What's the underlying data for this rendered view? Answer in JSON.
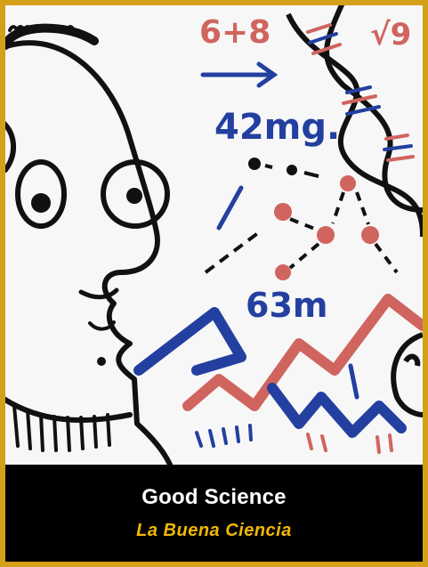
{
  "card": {
    "title": "Good Science",
    "subtitle": "La Buena Ciencia",
    "colors": {
      "frame": "#d4a017",
      "caption_bg": "#000000",
      "title_text": "#ffffff",
      "subtitle_text": "#f2b705",
      "ink_black": "#111111",
      "ink_blue": "#2340a0",
      "ink_red": "#d0645f"
    }
  },
  "whiteboard": {
    "equation": "6+8",
    "sqrt_label": "√9",
    "measure_1": "42mg.",
    "measure_2": "63m"
  }
}
